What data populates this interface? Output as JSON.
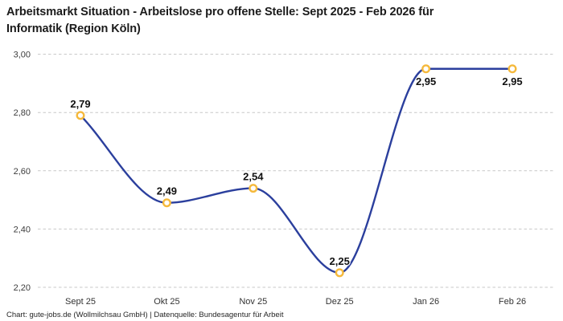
{
  "title": {
    "lines": [
      "Arbeitsmarkt Situation - Arbeitslose pro offene Stelle: Sept 2025 - Feb 2026 für",
      "Informatik (Region Köln)"
    ],
    "full": "Arbeitsmarkt Situation - Arbeitslose pro offene Stelle: Sept 2025 - Feb 2026 für Informatik (Region Köln)"
  },
  "footer": "Chart: gute-jobs.de (Wollmilchsau GmbH) | Datenquelle: Bundesagentur für Arbeit",
  "colors": {
    "line": "#2b3f9d",
    "marker_ring": "#f5b93c",
    "marker_fill": "#ffffff",
    "grid": "#c8c8c8",
    "axis_text": "#3d3d3d",
    "point_label_text": "#111111",
    "background": "#ffffff"
  },
  "chart_data": {
    "type": "line",
    "title": "Arbeitsmarkt Situation - Arbeitslose pro offene Stelle: Sept 2025 - Feb 2026 für Informatik (Region Köln)",
    "categories": [
      "Sept 25",
      "Okt 25",
      "Nov 25",
      "Dez 25",
      "Jan 26",
      "Feb 26"
    ],
    "values": [
      2.79,
      2.49,
      2.54,
      2.25,
      2.95,
      2.95
    ],
    "point_labels": [
      "2,79",
      "2,49",
      "2,54",
      "2,25",
      "2,95",
      "2,95"
    ],
    "label_positions": [
      "above",
      "above",
      "above",
      "above",
      "below",
      "below"
    ],
    "y_ticks": [
      {
        "value": 2.2,
        "label": "2,20"
      },
      {
        "value": 2.4,
        "label": "2,40"
      },
      {
        "value": 2.6,
        "label": "2,60"
      },
      {
        "value": 2.8,
        "label": "2,80"
      },
      {
        "value": 3.0,
        "label": "3,00"
      }
    ],
    "ylim": [
      2.2,
      3.0
    ],
    "xlabel": "",
    "ylabel": "",
    "grid": "horizontal-dashed",
    "curve": "monotone",
    "legend": "none"
  }
}
